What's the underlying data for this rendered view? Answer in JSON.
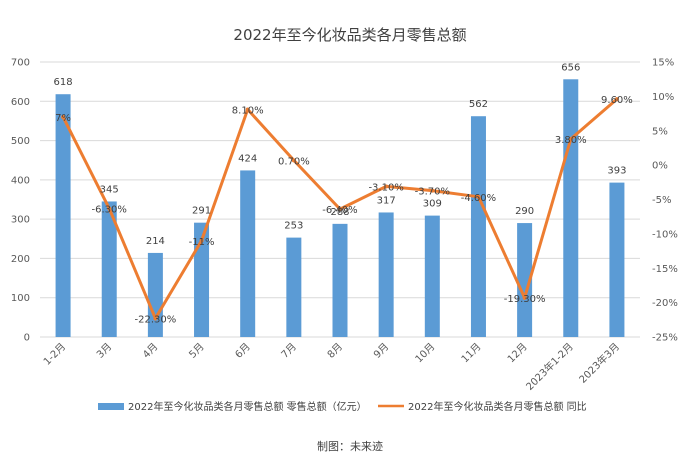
{
  "chart_data": {
    "type": "bar",
    "title": "2022年至今化妆品类各月零售总额",
    "categories": [
      "1-2月",
      "3月",
      "4月",
      "5月",
      "6月",
      "7月",
      "8月",
      "9月",
      "10月",
      "11月",
      "12月",
      "2023年1-2月",
      "2023年3月"
    ],
    "series": [
      {
        "name": "2022年至今化妆品类各月零售总额 零售总额（亿元）",
        "type": "bar",
        "axis": "left",
        "color": "#5b9bd5",
        "values": [
          618,
          345,
          214,
          291,
          424,
          253,
          288,
          317,
          309,
          562,
          290,
          656,
          393
        ],
        "labels": [
          "618",
          "345",
          "214",
          "291",
          "424",
          "253",
          "288",
          "317",
          "309",
          "562",
          "290",
          "656",
          "393"
        ]
      },
      {
        "name": "2022年至今化妆品类各月零售总额 同比",
        "type": "line",
        "axis": "right",
        "color": "#ed7d31",
        "values": [
          7,
          -6.3,
          -22.3,
          -11,
          8.1,
          0.7,
          -6.4,
          -3.1,
          -3.7,
          -4.6,
          -19.3,
          3.8,
          9.6
        ],
        "labels": [
          "7%",
          "-6.30%",
          "-22.30%",
          "-11%",
          "8.10%",
          "0.70%",
          "-6.40%",
          "-3.10%",
          "-3.70%",
          "-4.60%",
          "-19.30%",
          "3.80%",
          "9.60%"
        ]
      }
    ],
    "y_left": {
      "min": 0,
      "max": 700,
      "ticks": [
        0,
        100,
        200,
        300,
        400,
        500,
        600,
        700
      ]
    },
    "y_right": {
      "min": -25,
      "max": 15,
      "ticks": [
        "-25%",
        "-20%",
        "-15%",
        "-10%",
        "-5%",
        "0%",
        "5%",
        "10%",
        "15%"
      ]
    },
    "grid": true,
    "legend_position": "bottom",
    "credit": "制图：未来迹"
  }
}
